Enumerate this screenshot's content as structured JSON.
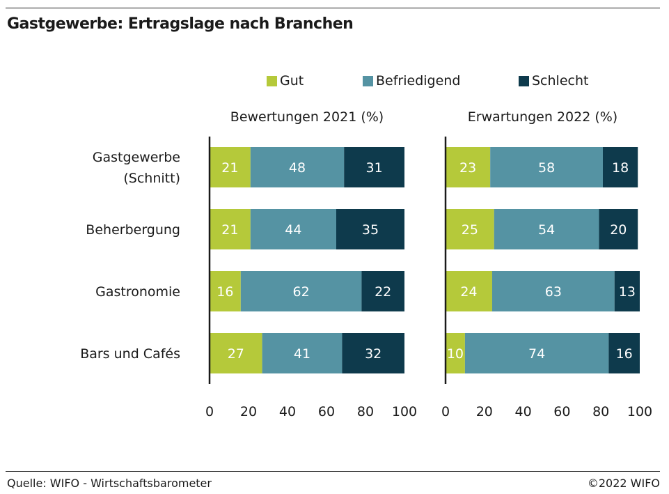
{
  "title": "Gastgewerbe: Ertragslage nach Branchen",
  "legend": [
    {
      "label": "Gut",
      "color": "#b5c93a"
    },
    {
      "label": "Befriedigend",
      "color": "#5593a3"
    },
    {
      "label": "Schlecht",
      "color": "#0e3a4c"
    }
  ],
  "footer": {
    "source": "Quelle: WIFO - Wirtschaftsbarometer",
    "copyright": "©2022 WIFO"
  },
  "chart_data": [
    {
      "type": "bar",
      "orientation": "horizontal",
      "stacked": true,
      "title": "Bewertungen 2021 (%)",
      "categories": [
        [
          "Gastgewerbe",
          "(Schnitt)"
        ],
        [
          "Beherbergung"
        ],
        [
          "Gastronomie"
        ],
        [
          "Bars und Cafés"
        ]
      ],
      "series": [
        {
          "name": "Gut",
          "values": [
            21,
            21,
            16,
            27
          ]
        },
        {
          "name": "Befriedigend",
          "values": [
            48,
            44,
            62,
            41
          ]
        },
        {
          "name": "Schlecht",
          "values": [
            31,
            35,
            22,
            32
          ]
        }
      ],
      "xlim": [
        0,
        100
      ],
      "xticks": [
        "0",
        "20",
        "40",
        "60",
        "80",
        "100"
      ],
      "grid": false
    },
    {
      "type": "bar",
      "orientation": "horizontal",
      "stacked": true,
      "title": "Erwartungen 2022 (%)",
      "categories": [
        [
          "Gastgewerbe",
          "(Schnitt)"
        ],
        [
          "Beherbergung"
        ],
        [
          "Gastronomie"
        ],
        [
          "Bars und Cafés"
        ]
      ],
      "series": [
        {
          "name": "Gut",
          "values": [
            23,
            25,
            24,
            10
          ]
        },
        {
          "name": "Befriedigend",
          "values": [
            58,
            54,
            63,
            74
          ]
        },
        {
          "name": "Schlecht",
          "values": [
            18,
            20,
            13,
            16
          ]
        }
      ],
      "xlim": [
        0,
        100
      ],
      "xticks": [
        "0",
        "20",
        "40",
        "60",
        "80",
        "100"
      ],
      "grid": false
    }
  ]
}
